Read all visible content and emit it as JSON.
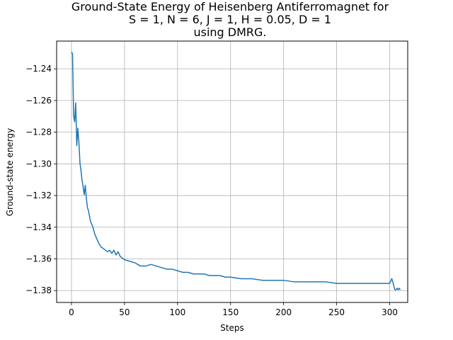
{
  "chart_data": {
    "type": "line",
    "title_lines": [
      "Ground-State Energy of Heisenberg Antiferromagnet for",
      "S = 1, N = 6, J = 1, H = 0.05, D = 1",
      "using DMRG."
    ],
    "xlabel": "Steps",
    "ylabel": "Ground-state energy",
    "xlim": [
      -14,
      317
    ],
    "ylim": [
      -1.3875,
      -1.2225
    ],
    "xticks": [
      0,
      50,
      100,
      150,
      200,
      250,
      300
    ],
    "yticks": [
      -1.24,
      -1.26,
      -1.28,
      -1.3,
      -1.32,
      -1.34,
      -1.36,
      -1.38
    ],
    "xtick_labels": [
      "0",
      "50",
      "100",
      "150",
      "200",
      "250",
      "300"
    ],
    "ytick_labels": [
      "−1.24",
      "−1.26",
      "−1.28",
      "−1.30",
      "−1.32",
      "−1.34",
      "−1.36",
      "−1.38"
    ],
    "grid": true,
    "line_color": "#1f77b4",
    "series": [
      {
        "x": [
          0,
          1,
          2,
          3,
          4,
          5,
          6,
          7,
          8,
          9,
          10,
          11,
          12,
          13,
          14,
          15,
          16,
          18,
          20,
          22,
          24,
          26,
          28,
          30,
          32,
          34,
          36,
          38,
          40,
          42,
          44,
          46,
          48,
          50,
          55,
          60,
          65,
          70,
          75,
          80,
          85,
          90,
          95,
          100,
          105,
          110,
          115,
          120,
          125,
          130,
          135,
          140,
          145,
          150,
          160,
          170,
          180,
          190,
          200,
          210,
          220,
          230,
          240,
          250,
          260,
          270,
          280,
          290,
          295,
          300,
          302,
          303,
          304,
          305,
          306,
          307,
          308,
          309,
          310
        ],
        "y": [
          -1.2295,
          -1.2305,
          -1.2695,
          -1.2735,
          -1.2615,
          -1.2885,
          -1.2775,
          -1.2865,
          -1.2995,
          -1.3045,
          -1.3105,
          -1.3145,
          -1.3195,
          -1.3135,
          -1.3215,
          -1.3275,
          -1.3295,
          -1.3365,
          -1.3395,
          -1.3445,
          -1.3475,
          -1.3505,
          -1.3525,
          -1.3535,
          -1.3545,
          -1.3555,
          -1.3545,
          -1.3565,
          -1.3545,
          -1.3575,
          -1.3555,
          -1.3585,
          -1.3595,
          -1.3605,
          -1.3615,
          -1.3625,
          -1.3645,
          -1.3645,
          -1.3635,
          -1.3645,
          -1.3655,
          -1.3665,
          -1.3665,
          -1.3675,
          -1.3685,
          -1.3685,
          -1.3695,
          -1.3695,
          -1.3695,
          -1.3705,
          -1.3705,
          -1.3705,
          -1.3715,
          -1.3715,
          -1.3725,
          -1.3725,
          -1.3735,
          -1.3735,
          -1.3735,
          -1.3745,
          -1.3745,
          -1.3745,
          -1.3745,
          -1.3755,
          -1.3755,
          -1.3755,
          -1.3755,
          -1.3755,
          -1.3755,
          -1.3755,
          -1.3725,
          -1.3745,
          -1.3775,
          -1.3795,
          -1.3795,
          -1.3785,
          -1.3795,
          -1.3785,
          -1.3795
        ]
      }
    ]
  }
}
